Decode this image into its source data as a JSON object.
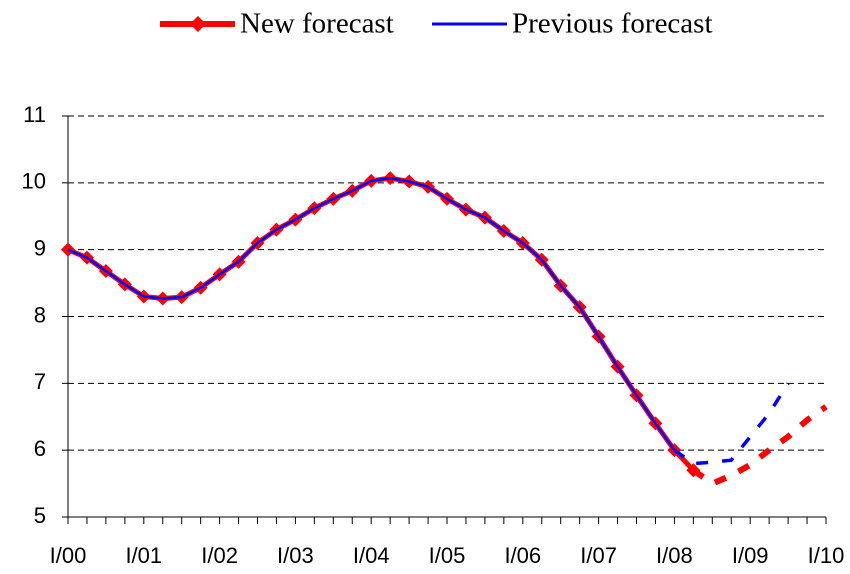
{
  "chart_data": {
    "type": "line",
    "categories": [
      "I/00",
      null,
      null,
      null,
      "I/01",
      null,
      null,
      null,
      "I/02",
      null,
      null,
      null,
      "I/03",
      null,
      null,
      null,
      "I/04",
      null,
      null,
      null,
      "I/05",
      null,
      null,
      null,
      "I/06",
      null,
      null,
      null,
      "I/07",
      null,
      null,
      null,
      "I/08",
      null,
      null,
      null,
      "I/09",
      null,
      null,
      null,
      "I/10"
    ],
    "series": [
      {
        "name": "New forecast",
        "color": "#ff0000",
        "dashed_from": 33,
        "markers": true,
        "values": [
          9.0,
          8.88,
          8.68,
          8.48,
          8.3,
          8.27,
          8.29,
          8.43,
          8.63,
          8.82,
          9.1,
          9.3,
          9.45,
          9.62,
          9.76,
          9.88,
          10.03,
          10.07,
          10.02,
          9.94,
          9.76,
          9.6,
          9.48,
          9.28,
          9.1,
          8.85,
          8.46,
          8.14,
          7.7,
          7.25,
          6.82,
          6.4,
          6.0,
          5.7,
          5.5,
          5.62,
          5.78,
          6.0,
          6.2,
          6.45,
          6.65
        ]
      },
      {
        "name": "Previous forecast",
        "color": "#0000ff",
        "dashed_from": 32,
        "markers": false,
        "values": [
          9.0,
          8.88,
          8.68,
          8.48,
          8.3,
          8.27,
          8.29,
          8.43,
          8.63,
          8.82,
          9.1,
          9.3,
          9.45,
          9.62,
          9.76,
          9.88,
          10.03,
          10.07,
          10.02,
          9.94,
          9.76,
          9.6,
          9.48,
          9.28,
          9.1,
          8.85,
          8.46,
          8.14,
          7.7,
          7.25,
          6.82,
          6.4,
          6.0,
          5.8,
          5.82,
          5.85,
          6.2,
          6.55,
          7.0,
          null,
          null
        ]
      }
    ],
    "ylim": [
      5,
      11
    ],
    "yticks": [
      5,
      6,
      7,
      8,
      9,
      10,
      11
    ],
    "grid": true
  }
}
